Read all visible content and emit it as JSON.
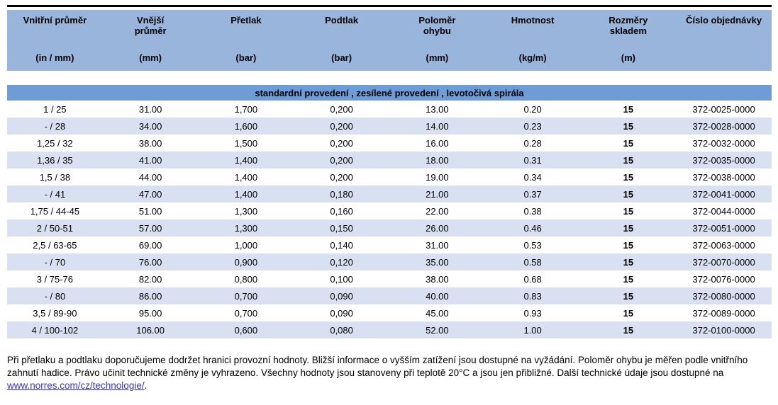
{
  "colors": {
    "header_band": "#9AB5DC",
    "section_band": "#6E9CD6",
    "row_alt": "#D8E0F1",
    "link_blue": "#3333CC"
  },
  "table": {
    "columns": [
      {
        "name": "Vnitřní průměr",
        "unit": "(in / mm)"
      },
      {
        "name": "Vnější\nprůměr",
        "unit": "(mm)"
      },
      {
        "name": "Přetlak",
        "unit": "(bar)"
      },
      {
        "name": "Podtlak",
        "unit": "(bar)"
      },
      {
        "name": "Poloměr\nohybu",
        "unit": "(mm)"
      },
      {
        "name": "Hmotnost",
        "unit": "(kg/m)"
      },
      {
        "name": "Rozměry\nskladem",
        "unit": "(m)"
      },
      {
        "name": "Číslo objednávky",
        "unit": ""
      }
    ],
    "section_title": "standardní provedení , zesílené provedení , levotočivá spirála",
    "rows": [
      [
        "1 / 25",
        "31.00",
        "1,700",
        "0,200",
        "13.00",
        "0.20",
        "15",
        "372-0025-0000"
      ],
      [
        "- / 28",
        "34.00",
        "1,600",
        "0,200",
        "14.00",
        "0.23",
        "15",
        "372-0028-0000"
      ],
      [
        "1,25 / 32",
        "38.00",
        "1,500",
        "0,200",
        "16.00",
        "0.28",
        "15",
        "372-0032-0000"
      ],
      [
        "1,36 / 35",
        "41.00",
        "1,400",
        "0,200",
        "18.00",
        "0.31",
        "15",
        "372-0035-0000"
      ],
      [
        "1,5 / 38",
        "44.00",
        "1,400",
        "0,200",
        "19.00",
        "0.34",
        "15",
        "372-0038-0000"
      ],
      [
        "- / 41",
        "47.00",
        "1,400",
        "0,180",
        "21.00",
        "0.37",
        "15",
        "372-0041-0000"
      ],
      [
        "1,75 / 44-45",
        "51.00",
        "1,300",
        "0,160",
        "22.00",
        "0.38",
        "15",
        "372-0044-0000"
      ],
      [
        "2 / 50-51",
        "57.00",
        "1,300",
        "0,150",
        "26.00",
        "0.46",
        "15",
        "372-0051-0000"
      ],
      [
        "2,5 / 63-65",
        "69.00",
        "1,000",
        "0,140",
        "31.00",
        "0.53",
        "15",
        "372-0063-0000"
      ],
      [
        "- / 70",
        "76.00",
        "0,900",
        "0,120",
        "35.00",
        "0.58",
        "15",
        "372-0070-0000"
      ],
      [
        "3 / 75-76",
        "82.00",
        "0,800",
        "0,100",
        "38.00",
        "0.68",
        "15",
        "372-0076-0000"
      ],
      [
        "- / 80",
        "86.00",
        "0,700",
        "0,090",
        "40.00",
        "0.83",
        "15",
        "372-0080-0000"
      ],
      [
        "3,5 / 89-90",
        "95.00",
        "0,700",
        "0,090",
        "45.00",
        "0.93",
        "15",
        "372-0089-0000"
      ],
      [
        "4 / 100-102",
        "106.00",
        "0,600",
        "0,080",
        "52.00",
        "1.00",
        "15",
        "372-0100-0000"
      ]
    ]
  },
  "footer": {
    "line1": "Při přetlaku a podtlaku doporučujeme dodržet hranici provozní hodnoty. Bližší informace o vyšším zatížení jsou dostupné na vyžádání. Poloměr ohybu je měřen podle vnitřního",
    "line2": "zahnutí hadice. Právo učinit technické změny je vyhrazeno. Všechny hodnoty jsou stanoveny při teplotě 20°C a jsou jen přibližné. Další technické údaje jsou dostupné na",
    "link_text": "www.norres.com/cz/technologie/",
    "link_suffix": "."
  }
}
